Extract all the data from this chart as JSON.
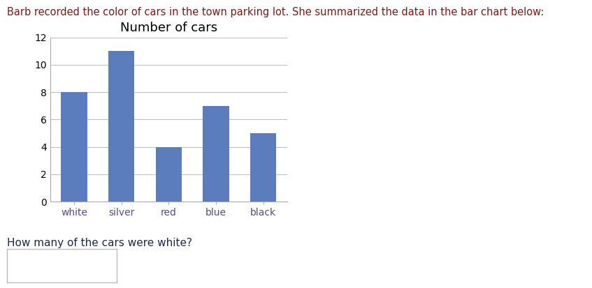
{
  "title": "Number of cars",
  "categories": [
    "white",
    "silver",
    "red",
    "blue",
    "black"
  ],
  "values": [
    8,
    11,
    4,
    7,
    5
  ],
  "bar_color": "#5b7dbe",
  "ylim": [
    0,
    12
  ],
  "yticks": [
    0,
    2,
    4,
    6,
    8,
    10,
    12
  ],
  "bar_width": 0.55,
  "title_fontsize": 13,
  "tick_fontsize": 10,
  "title_color": "#000000",
  "header_color": "#7b1a1a",
  "xticklabel_color": "#5b4a7a",
  "header_text": "Barb recorded the color of cars in the town parking lot. She summarized the data in the bar chart below:",
  "question_text": "How many of the cars were white?",
  "header_fontsize": 10.5,
  "question_fontsize": 11,
  "question_color": "#1a2a4a",
  "background_color": "#ffffff"
}
